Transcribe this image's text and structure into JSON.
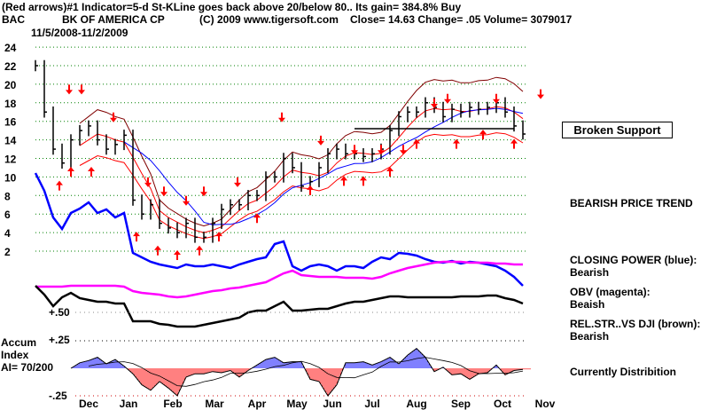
{
  "header": {
    "line1": "(Red arrows)#1 Indicator=5-d St-KLine goes back above 20/below 80.. Its gain=  384.8% Buy",
    "symbol": "BAC",
    "company": "BK OF AMERICA CP",
    "copyright": "(C) 2009 www.tigersoft.com",
    "quote": "Close=  14.63  Change= .05 Volume= 3079017",
    "date_range": "11/5/2008-11/2/2009"
  },
  "side": {
    "broken_support": "Broken Support",
    "trend": "BEARISH PRICE TREND",
    "cp_label": "CLOSING POWER (blue):",
    "cp_value": "Bearish",
    "obv_label": "OBV (magenta):",
    "obv_value": "Beaish",
    "rs_label": "REL.STR..VS DJI (brown):",
    "rs_value": "Bearish",
    "accum_status": "Currently Distribition"
  },
  "accum": {
    "label1": "Accum",
    "label2": "Index",
    "label3": "AI= 70/200",
    "plus50": "+.50",
    "plus25": "+.25",
    "minus25": "-.25"
  },
  "colors": {
    "price": "#000000",
    "cp": "#0000ff",
    "obv": "#ff00ff",
    "rs": "#000000",
    "band": "#ff0000",
    "upper": "#800000",
    "grid": "#008000",
    "accum_pos": "#0000ff",
    "accum_neg": "#ff0000"
  },
  "chart_data": {
    "type": "line",
    "title": "BAC BK OF AMERICA CP 11/5/2008-11/2/2009",
    "y_ticks": [
      24,
      22,
      20,
      18,
      16,
      14,
      12,
      10,
      8,
      6,
      4,
      2
    ],
    "ylim": [
      1,
      25
    ],
    "months": [
      "Dec",
      "Jan",
      "Feb",
      "Mar",
      "Apr",
      "May",
      "Jun",
      "Jul",
      "Aug",
      "Sep",
      "Oct",
      "Nov"
    ],
    "close": [
      22,
      17,
      13,
      11.5,
      14,
      15,
      15.5,
      14,
      13,
      13.5,
      14.5,
      7.5,
      6,
      7,
      5,
      4.5,
      4,
      5,
      3.5,
      3.5,
      5,
      6.5,
      7,
      7,
      8,
      8,
      10,
      10,
      12,
      11,
      9,
      9.5,
      11,
      12.5,
      13,
      12.5,
      12.5,
      12.2,
      12.5,
      13,
      15,
      16.5,
      17,
      17,
      18,
      17.5,
      16.5,
      17.3,
      17,
      17.5,
      17.3,
      17.5,
      18,
      17,
      15.5,
      14.63
    ],
    "closing_power": [
      125,
      105,
      75,
      62,
      80,
      85,
      92,
      80,
      84,
      75,
      80,
      35,
      30,
      25,
      22,
      20,
      18,
      22,
      20,
      20,
      22,
      20,
      18,
      22,
      25,
      28,
      30,
      45,
      48,
      20,
      15,
      20,
      22,
      20,
      15,
      20,
      20,
      18,
      25,
      30,
      28,
      35,
      34,
      32,
      28,
      25,
      24,
      26,
      23,
      25,
      24,
      22,
      20,
      15,
      8,
      -2
    ],
    "obv": [
      17,
      17,
      17,
      17,
      18,
      18,
      18,
      18,
      18,
      18,
      17,
      12,
      10,
      9,
      8,
      6,
      5,
      6,
      8,
      10,
      12,
      13,
      15,
      16,
      18,
      20,
      22,
      27,
      32,
      35,
      30,
      29,
      28,
      28,
      28,
      27,
      27,
      27,
      26,
      28,
      32,
      35,
      38,
      40,
      42,
      44,
      45,
      45,
      45,
      44,
      44,
      44,
      43,
      43,
      42,
      42
    ],
    "rel_strength": [
      58,
      48,
      35,
      45,
      50,
      44,
      42,
      40,
      40,
      38,
      38,
      18,
      18,
      18,
      15,
      14,
      12,
      12,
      12,
      14,
      16,
      18,
      20,
      22,
      28,
      30,
      30,
      35,
      40,
      30,
      30,
      31,
      32,
      32,
      35,
      38,
      40,
      40,
      42,
      44,
      46,
      46,
      45,
      45,
      45,
      45,
      45,
      45,
      46,
      46,
      46,
      47,
      47,
      44,
      42,
      38
    ],
    "accum_index": [
      0,
      0,
      0,
      0,
      0,
      0.05,
      0.07,
      0.1,
      0.04,
      0.08,
      0.02,
      -0.05,
      -0.15,
      -0.2,
      -0.12,
      -0.18,
      -0.25,
      -0.08,
      -0.05,
      -0.05,
      -0.03,
      -0.04,
      -0.02,
      -0.08,
      -0.02,
      0.03,
      0.08,
      0.1,
      0.05,
      0.06,
      0.06,
      -0.1,
      -0.12,
      -0.25,
      -0.15,
      0.05,
      0.05,
      0.06,
      0.03,
      0.06,
      0.1,
      0.04,
      0.12,
      0.18,
      0.1,
      -0.03,
      0.01,
      -0.06,
      -0.05,
      -0.1,
      -0.05,
      -0.04,
      0.03,
      -0.06,
      -0.02,
      -0.01
    ],
    "sell_arrows": [
      [
        3.8,
        19
      ],
      [
        5.2,
        19
      ],
      [
        8.8,
        16
      ],
      [
        12.7,
        9
      ],
      [
        14.5,
        8
      ],
      [
        17,
        7
      ],
      [
        19,
        8
      ],
      [
        22.8,
        9
      ],
      [
        27.8,
        16
      ],
      [
        32.2,
        13.5
      ],
      [
        36,
        12.5
      ],
      [
        39,
        12.5
      ],
      [
        41.5,
        12.5
      ],
      [
        45,
        17.5
      ],
      [
        46.5,
        18
      ],
      [
        52,
        18
      ],
      [
        57,
        18.5
      ]
    ],
    "buy_arrows": [
      [
        2.7,
        9.5
      ],
      [
        4,
        11
      ],
      [
        6.3,
        11
      ],
      [
        11.4,
        4
      ],
      [
        13.8,
        2.5
      ],
      [
        16,
        2
      ],
      [
        18.5,
        2.5
      ],
      [
        20.7,
        4
      ],
      [
        25,
        6
      ],
      [
        31,
        9
      ],
      [
        34.8,
        10
      ],
      [
        37,
        10
      ],
      [
        40,
        11
      ],
      [
        43,
        14
      ],
      [
        47.5,
        14
      ],
      [
        50.5,
        15
      ],
      [
        54,
        14
      ]
    ],
    "support_level": 15.2
  }
}
